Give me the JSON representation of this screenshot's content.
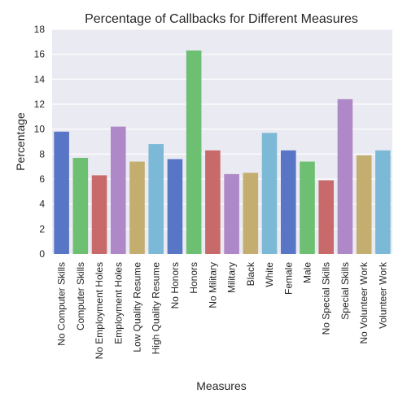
{
  "chart_data": {
    "type": "bar",
    "title": "Percentage of Callbacks for Different Measures",
    "xlabel": "Measures",
    "ylabel": "Percentage",
    "ylim": [
      0,
      18
    ],
    "yticks": [
      0,
      2,
      4,
      6,
      8,
      10,
      12,
      14,
      16,
      18
    ],
    "grid": true,
    "background": "#eaeaf2",
    "categories": [
      "No Computer Skills",
      "Computer Skills",
      "No Employment Holes",
      "Employment Holes",
      "Low Quality Resume",
      "High Quality Resume",
      "No Honors",
      "Honors",
      "No Military",
      "Military",
      "Black",
      "White",
      "Female",
      "Male",
      "No Special Skills",
      "Special Skills",
      "No Volunteer Work",
      "Volunteer Work"
    ],
    "values": [
      9.8,
      7.7,
      6.3,
      10.2,
      7.4,
      8.8,
      7.6,
      16.3,
      8.3,
      6.4,
      6.5,
      9.7,
      8.3,
      7.4,
      5.9,
      12.4,
      7.9,
      8.3
    ],
    "colors": [
      "#5975c5",
      "#6dbf72",
      "#c96a6a",
      "#af88c8",
      "#c3ad6f",
      "#7cb9d6"
    ]
  }
}
